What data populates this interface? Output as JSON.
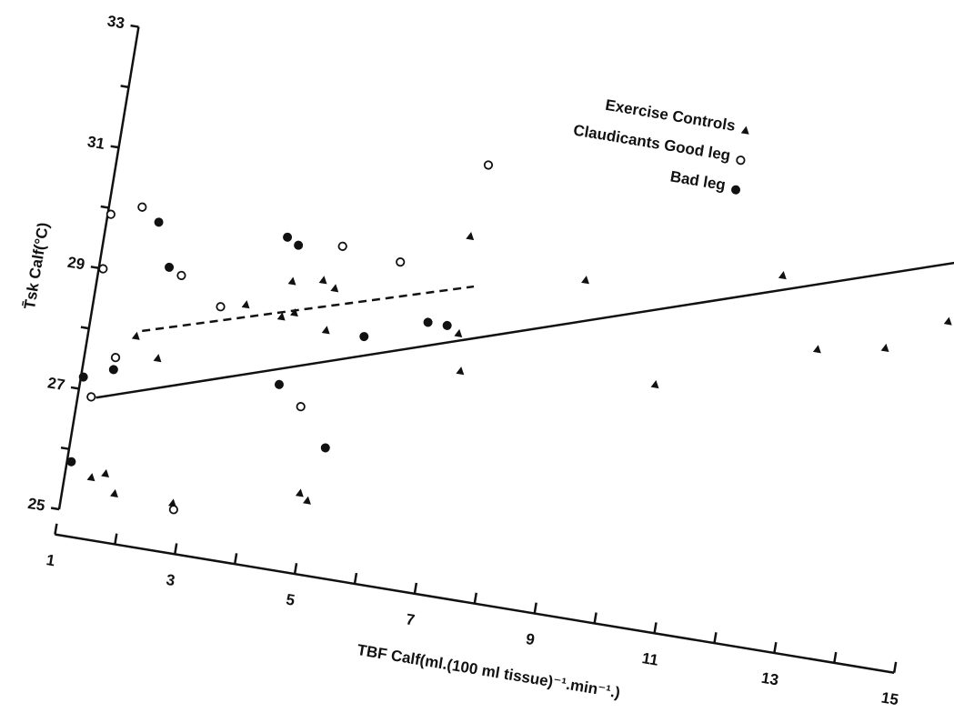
{
  "chart_data": {
    "type": "scatter",
    "x_label": "TBF Calf(ml.(100 ml tissue)⁻¹.min⁻¹.)",
    "y_label": "T̄sk Calf(°C)",
    "xlim": [
      1,
      15
    ],
    "xticks": [
      1,
      3,
      5,
      7,
      9,
      11,
      13,
      15
    ],
    "xminorticks": [
      2,
      4,
      6,
      8,
      10,
      12,
      14
    ],
    "ylim": [
      25,
      33
    ],
    "yticks": [
      25,
      27,
      29,
      31,
      33
    ],
    "yminorticks": [
      26,
      28,
      30,
      32
    ],
    "legend": "upper right",
    "series": [
      {
        "name": "Exercise Controls",
        "marker": "triangle",
        "color": "#111",
        "x": [
          1.79,
          2.2,
          1.44,
          1.66,
          1.86,
          2.83,
          3.49,
          4.1,
          4.18,
          4.3,
          4.68,
          4.89,
          4.86,
          4.87,
          5.01,
          6.95,
          7.02,
          7.15,
          8.94,
          10.35,
          12.13,
          12.89,
          13.99,
          14.94
        ],
        "values": [
          28.0,
          27.7,
          25.6,
          25.7,
          25.4,
          25.4,
          28.8,
          28.7,
          29.3,
          28.8,
          29.4,
          29.3,
          28.6,
          25.9,
          25.8,
          30.5,
          28.9,
          28.3,
          30.1,
          28.6,
          30.7,
          29.6,
          29.8,
          30.4
        ]
      },
      {
        "name": "Claudicants Good leg",
        "marker": "open-circle",
        "color": "#111",
        "x": [
          1.05,
          1.07,
          1.51,
          1.22,
          1.54,
          2.36,
          2.86,
          3.08,
          4.65,
          4.9,
          5.88,
          7.05
        ],
        "values": [
          29.9,
          29.0,
          27.6,
          26.9,
          30.1,
          29.1,
          25.3,
          28.7,
          27.3,
          30.0,
          29.9,
          31.7
        ]
      },
      {
        "name": "Bad leg",
        "marker": "filled-circle",
        "color": "#111",
        "x": [
          1.07,
          1.04,
          1.51,
          1.85,
          2.14,
          3.98,
          4.18,
          4.24,
          5.16,
          5.49,
          6.49,
          6.81
        ],
        "values": [
          25.8,
          27.2,
          27.4,
          29.9,
          29.2,
          30.0,
          29.9,
          27.6,
          26.7,
          28.6,
          29.0,
          29.0
        ]
      }
    ],
    "lines": [
      {
        "style": "solid",
        "x": [
          1.3,
          15
        ],
        "values": [
          26.9,
          31.4
        ]
      },
      {
        "style": "dashed",
        "x": [
          1.87,
          7.14
        ],
        "values": [
          28.1,
          29.7
        ]
      }
    ]
  }
}
